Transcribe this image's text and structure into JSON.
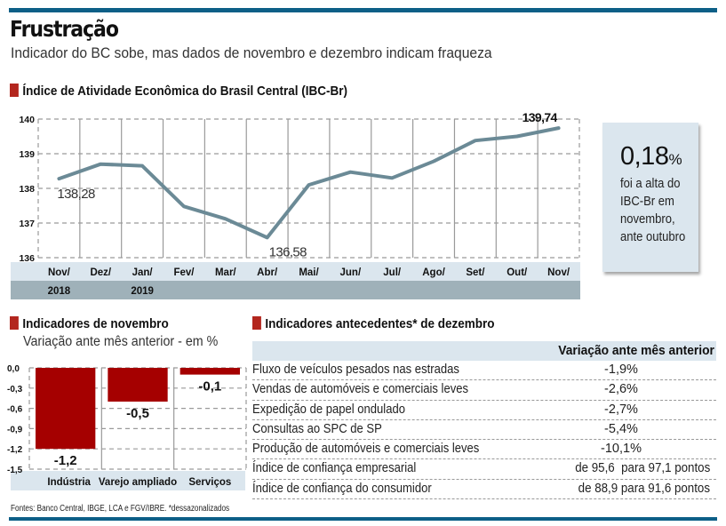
{
  "header": {
    "title": "Frustração",
    "subtitle": "Indicador do BC sobe, mas dados de novembro e dezembro indicam fraqueza"
  },
  "colors": {
    "brand_bar": "#0d5f87",
    "section_square": "#b3261e",
    "line": "#6b8a96",
    "bar": "#a50000",
    "band_light": "#dbe6ee",
    "band_dark": "#9fb1b9"
  },
  "chart_data": [
    {
      "type": "line",
      "title": "Índice de Atividade Econômica do Brasil Central (IBC-Br)",
      "categories": [
        "Nov/",
        "Dez/",
        "Jan/",
        "Fev/",
        "Mar/",
        "Abr/",
        "Mai/",
        "Jun/",
        "Jul/",
        "Ago/",
        "Set/",
        "Out/",
        "Nov/"
      ],
      "year_labels": [
        {
          "index": 0,
          "label": "2018"
        },
        {
          "index": 2,
          "label": "2019"
        }
      ],
      "series": [
        {
          "name": "IBC-Br",
          "values": [
            138.28,
            138.7,
            138.65,
            137.48,
            137.12,
            136.58,
            138.1,
            138.47,
            138.3,
            138.78,
            139.38,
            139.5,
            139.74
          ]
        }
      ],
      "annotations": [
        {
          "index": 0,
          "label": "138,28"
        },
        {
          "index": 5,
          "label": "136,58"
        },
        {
          "index": 12,
          "label": "139,74"
        }
      ],
      "yticks": [
        "136",
        "137",
        "138",
        "139",
        "140"
      ],
      "ylim": [
        136,
        140
      ],
      "grid": true
    },
    {
      "type": "bar",
      "title": "Indicadores de novembro",
      "subtitle": "Variação ante mês anterior - em %",
      "categories": [
        "Indústria",
        "Varejo ampliado",
        "Serviços"
      ],
      "values": [
        -1.2,
        -0.5,
        -0.1
      ],
      "value_labels": [
        "-1,2",
        "-0,5",
        "-0,1"
      ],
      "yticks": [
        "0,0",
        "-0,3",
        "-0,6",
        "-0,9",
        "-1,2",
        "-1,5"
      ],
      "ylim": [
        -1.5,
        0
      ],
      "grid": true
    },
    {
      "type": "table",
      "title": "Indicadores antecedentes* de dezembro",
      "column_header": "Variação ante mês anterior",
      "rows": [
        {
          "label": "Fluxo de veículos pesados nas estradas",
          "value": "-1,9%"
        },
        {
          "label": "Vendas de automóveis e comerciais leves",
          "value": "-2,6%"
        },
        {
          "label": "Expedição de papel ondulado",
          "value": "-2,7%"
        },
        {
          "label": "Consultas ao SPC de SP",
          "value": "-5,4%"
        },
        {
          "label": "Produção de automóveis e comerciais leves",
          "value": "-10,1%"
        },
        {
          "label": "Índice de confiança empresarial",
          "value": "de 95,6  para 97,1 pontos"
        },
        {
          "label": "Índice de confiança do consumidor",
          "value": "de 88,9 para 91,6 pontos"
        }
      ]
    }
  ],
  "callout": {
    "value": "0,18",
    "unit": "%",
    "lines": [
      "foi a alta do",
      "IBC-Br em",
      "novembro,",
      "ante outubro"
    ]
  },
  "footer": {
    "source": "Fontes: Banco Central, IBGE, LCA e FGV/IBRE. *dessazonalizados"
  }
}
